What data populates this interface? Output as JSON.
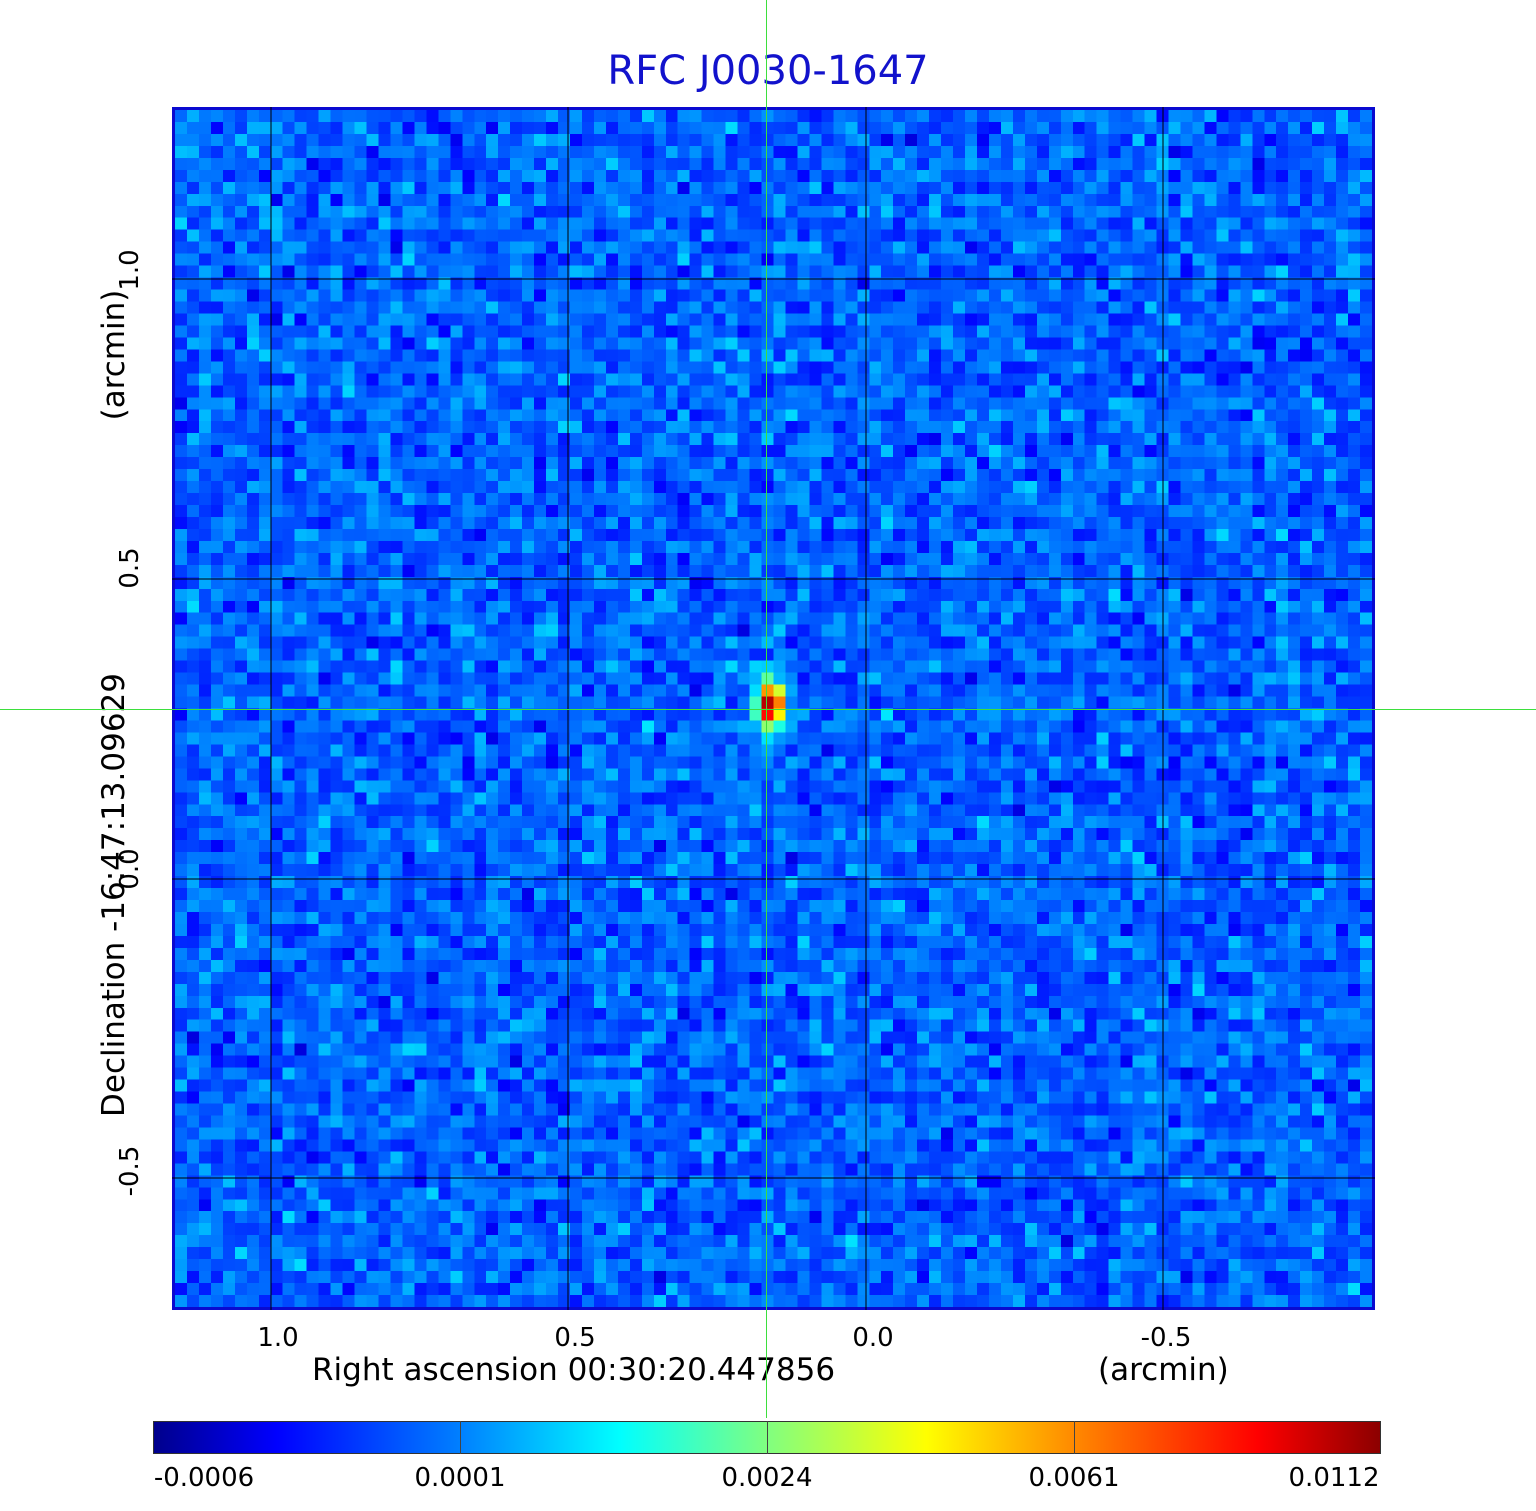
{
  "title": "RFC J0030-1647",
  "chart_data": {
    "type": "heatmap",
    "title": "RFC J0030-1647",
    "xlabel": "Right ascension  00:30:20.447856",
    "xunit": "(arcmin)",
    "ylabel": "Declination  -16:47:13.09629",
    "yunit": "(arcmin)",
    "x_ticks": [
      "1.0",
      "0.5",
      "0.0",
      "-0.5"
    ],
    "y_ticks": [
      "1.0",
      "0.5",
      "0.0",
      "-0.5"
    ],
    "x_range": [
      1.17,
      -0.85
    ],
    "y_range": [
      -0.72,
      1.28
    ],
    "grid": true,
    "source_peak": {
      "x": 0.165,
      "y": 0.285,
      "value": 0.0112
    },
    "colorbar_ticks": [
      "-0.0006",
      "0.0001",
      "0.0024",
      "0.0061",
      "0.0112"
    ],
    "colormap": "jet",
    "crosshair": {
      "x": 0.165,
      "y": 0.285
    }
  },
  "colors": {
    "title": "#1212cc",
    "frame": "#0a0ad0",
    "crosshair": "#3ddf3d"
  }
}
